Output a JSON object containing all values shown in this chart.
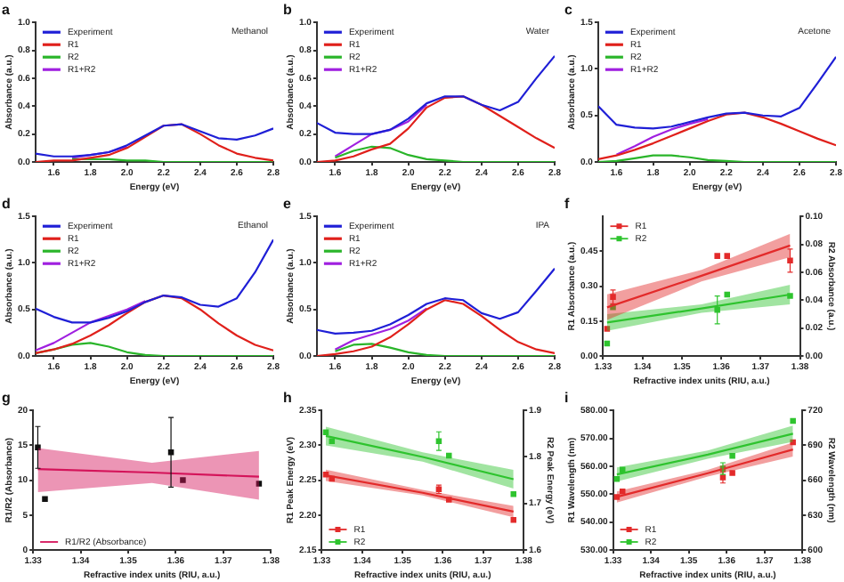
{
  "chart_data": [
    {
      "type": "line",
      "title": "a",
      "xlabel": "Energy (eV)",
      "ylabel": "Absorbance (a.u.)",
      "annotations": [
        "Methanol"
      ],
      "legend": "top left",
      "x": [
        1.5,
        1.6,
        1.7,
        1.8,
        1.9,
        2.0,
        2.1,
        2.2,
        2.3,
        2.4,
        2.5,
        2.6,
        2.7,
        2.8
      ],
      "xlim": [
        1.5,
        2.8
      ],
      "xticks": [
        {
          "value": 1.6,
          "label": "1.6"
        },
        {
          "value": 1.8,
          "label": "1.8"
        },
        {
          "value": 2.0,
          "label": "2.0"
        },
        {
          "value": 2.2,
          "label": "2.2"
        },
        {
          "value": 2.4,
          "label": "2.4"
        },
        {
          "value": 2.6,
          "label": "2.6"
        },
        {
          "value": 2.8,
          "label": "2.8"
        }
      ],
      "ylim": [
        0,
        1
      ],
      "yticks": [
        {
          "value": 0,
          "label": "0.0"
        },
        {
          "value": 0.2,
          "label": "0.2"
        },
        {
          "value": 0.4,
          "label": "0.4"
        },
        {
          "value": 0.6,
          "label": "0.6"
        },
        {
          "value": 0.8,
          "label": "0.8"
        },
        {
          "value": 1,
          "label": "1.0"
        }
      ],
      "series": [
        {
          "name": "Experiment",
          "color": "#1f1fd6",
          "values": [
            0.06,
            0.04,
            0.04,
            0.05,
            0.07,
            0.12,
            0.19,
            0.26,
            0.27,
            0.22,
            0.17,
            0.16,
            0.19,
            0.24
          ]
        },
        {
          "name": "R1",
          "color": "#e0201b",
          "values": [
            0,
            0.01,
            0.01,
            0.03,
            0.05,
            0.1,
            0.18,
            0.26,
            0.27,
            0.2,
            0.12,
            0.06,
            0.03,
            0.01
          ]
        },
        {
          "name": "R2",
          "color": "#2ab52a",
          "values": [
            null,
            null,
            0.02,
            0.02,
            0.02,
            0.01,
            0.01,
            0,
            0,
            0,
            0,
            0,
            0,
            0
          ]
        },
        {
          "name": "R1+R2",
          "color": "#a020e0",
          "values": [
            null,
            null,
            0.03,
            0.05,
            0.07,
            0.11,
            null,
            null,
            null,
            null,
            null,
            null,
            null,
            null
          ]
        }
      ]
    },
    {
      "type": "line",
      "title": "b",
      "xlabel": "Energy (eV)",
      "ylabel": "Absorbance (a.u.)",
      "annotations": [
        "Water"
      ],
      "legend": "top left",
      "x": [
        1.5,
        1.6,
        1.7,
        1.8,
        1.9,
        2.0,
        2.1,
        2.2,
        2.3,
        2.4,
        2.5,
        2.6,
        2.7,
        2.8
      ],
      "xlim": [
        1.5,
        2.8
      ],
      "xticks": [
        {
          "value": 1.6,
          "label": "1.6"
        },
        {
          "value": 1.8,
          "label": "1.8"
        },
        {
          "value": 2.0,
          "label": "2.0"
        },
        {
          "value": 2.2,
          "label": "2.2"
        },
        {
          "value": 2.4,
          "label": "2.4"
        },
        {
          "value": 2.6,
          "label": "2.6"
        },
        {
          "value": 2.8,
          "label": "2.8"
        }
      ],
      "ylim": [
        0,
        1
      ],
      "yticks": [
        {
          "value": 0,
          "label": "0.0"
        },
        {
          "value": 0.2,
          "label": "0.2"
        },
        {
          "value": 0.4,
          "label": "0.4"
        },
        {
          "value": 0.6,
          "label": "0.6"
        },
        {
          "value": 0.8,
          "label": "0.8"
        },
        {
          "value": 1,
          "label": "1.0"
        }
      ],
      "series": [
        {
          "name": "Experiment",
          "color": "#1f1fd6",
          "values": [
            0.28,
            0.21,
            0.2,
            0.2,
            0.23,
            0.31,
            0.42,
            0.47,
            0.47,
            0.41,
            0.37,
            0.43,
            0.6,
            0.76
          ]
        },
        {
          "name": "R1",
          "color": "#e0201b",
          "values": [
            0,
            0.01,
            0.04,
            0.09,
            0.13,
            0.24,
            0.39,
            0.46,
            0.47,
            0.41,
            0.33,
            0.25,
            0.17,
            0.1
          ]
        },
        {
          "name": "R2",
          "color": "#2ab52a",
          "values": [
            null,
            0.03,
            0.08,
            0.11,
            0.1,
            0.05,
            0.02,
            0.01,
            0,
            0,
            0,
            0,
            0,
            0
          ]
        },
        {
          "name": "R1+R2",
          "color": "#a020e0",
          "values": [
            null,
            0.04,
            0.12,
            0.2,
            0.23,
            0.29,
            0.41,
            null,
            null,
            null,
            null,
            null,
            null,
            null
          ]
        }
      ]
    },
    {
      "type": "line",
      "title": "c",
      "xlabel": "Energy (eV)",
      "ylabel": "Absorbance (a.u.)",
      "annotations": [
        "Acetone"
      ],
      "legend": "top left",
      "x": [
        1.5,
        1.6,
        1.7,
        1.8,
        1.9,
        2.0,
        2.1,
        2.2,
        2.3,
        2.4,
        2.5,
        2.6,
        2.7,
        2.8
      ],
      "xlim": [
        1.5,
        2.8
      ],
      "xticks": [
        {
          "value": 1.6,
          "label": "1.6"
        },
        {
          "value": 1.8,
          "label": "1.8"
        },
        {
          "value": 2.0,
          "label": "2.0"
        },
        {
          "value": 2.2,
          "label": "2.2"
        },
        {
          "value": 2.4,
          "label": "2.4"
        },
        {
          "value": 2.6,
          "label": "2.6"
        },
        {
          "value": 2.8,
          "label": "2.8"
        }
      ],
      "ylim": [
        0,
        1.5
      ],
      "yticks": [
        {
          "value": 0,
          "label": "0.0"
        },
        {
          "value": 0.5,
          "label": "0.5"
        },
        {
          "value": 1,
          "label": "1.0"
        },
        {
          "value": 1.5,
          "label": "1.5"
        }
      ],
      "series": [
        {
          "name": "Experiment",
          "color": "#1f1fd6",
          "values": [
            0.6,
            0.4,
            0.37,
            0.36,
            0.38,
            0.43,
            0.48,
            0.52,
            0.53,
            0.5,
            0.49,
            0.58,
            0.85,
            1.13
          ]
        },
        {
          "name": "R1",
          "color": "#e0201b",
          "values": [
            0.03,
            0.07,
            0.13,
            0.2,
            0.28,
            0.36,
            0.44,
            0.51,
            0.53,
            0.48,
            0.41,
            0.33,
            0.25,
            0.18
          ]
        },
        {
          "name": "R2",
          "color": "#2ab52a",
          "values": [
            0,
            0.01,
            0.04,
            0.07,
            0.07,
            0.05,
            0.02,
            0.01,
            0,
            0,
            0,
            0,
            0,
            0
          ]
        },
        {
          "name": "R1+R2",
          "color": "#a020e0",
          "values": [
            null,
            0.08,
            0.17,
            0.27,
            0.35,
            0.41,
            0.46,
            null,
            null,
            null,
            null,
            null,
            null,
            null
          ]
        }
      ]
    },
    {
      "type": "line",
      "title": "d",
      "xlabel": "Energy (eV)",
      "ylabel": "Absorbance (a.u.)",
      "annotations": [
        "Ethanol"
      ],
      "legend": "top left",
      "x": [
        1.5,
        1.6,
        1.7,
        1.8,
        1.9,
        2.0,
        2.1,
        2.2,
        2.3,
        2.4,
        2.5,
        2.6,
        2.7,
        2.8
      ],
      "xlim": [
        1.5,
        2.8
      ],
      "xticks": [
        {
          "value": 1.6,
          "label": "1.6"
        },
        {
          "value": 1.8,
          "label": "1.8"
        },
        {
          "value": 2.0,
          "label": "2.0"
        },
        {
          "value": 2.2,
          "label": "2.2"
        },
        {
          "value": 2.4,
          "label": "2.4"
        },
        {
          "value": 2.6,
          "label": "2.6"
        },
        {
          "value": 2.8,
          "label": "2.8"
        }
      ],
      "ylim": [
        0,
        1.5
      ],
      "yticks": [
        {
          "value": 0,
          "label": "0.0"
        },
        {
          "value": 0.5,
          "label": "0.5"
        },
        {
          "value": 1,
          "label": "1.0"
        },
        {
          "value": 1.5,
          "label": "1.5"
        }
      ],
      "series": [
        {
          "name": "Experiment",
          "color": "#1f1fd6",
          "values": [
            0.51,
            0.42,
            0.36,
            0.36,
            0.41,
            0.48,
            0.58,
            0.65,
            0.63,
            0.55,
            0.53,
            0.62,
            0.9,
            1.25
          ]
        },
        {
          "name": "R1",
          "color": "#e0201b",
          "values": [
            0.03,
            0.07,
            0.13,
            0.22,
            0.33,
            0.46,
            0.58,
            0.65,
            0.62,
            0.5,
            0.35,
            0.22,
            0.12,
            0.06
          ]
        },
        {
          "name": "R2",
          "color": "#2ab52a",
          "values": [
            0.03,
            0.07,
            0.12,
            0.14,
            0.1,
            0.04,
            0.01,
            0,
            0,
            0,
            0,
            0,
            0,
            0
          ]
        },
        {
          "name": "R1+R2",
          "color": "#a020e0",
          "values": [
            0.06,
            0.14,
            0.25,
            0.36,
            0.43,
            0.5,
            0.59,
            null,
            null,
            null,
            null,
            null,
            null,
            null
          ]
        }
      ]
    },
    {
      "type": "line",
      "title": "e",
      "xlabel": "Energy (eV)",
      "ylabel": "Absorbance (a.u.)",
      "annotations": [
        "IPA"
      ],
      "legend": "top left",
      "x": [
        1.5,
        1.6,
        1.7,
        1.8,
        1.9,
        2.0,
        2.1,
        2.2,
        2.3,
        2.4,
        2.5,
        2.6,
        2.7,
        2.8
      ],
      "xlim": [
        1.5,
        2.8
      ],
      "xticks": [
        {
          "value": 1.6,
          "label": "1.6"
        },
        {
          "value": 1.8,
          "label": "1.8"
        },
        {
          "value": 2.0,
          "label": "2.0"
        },
        {
          "value": 2.2,
          "label": "2.2"
        },
        {
          "value": 2.4,
          "label": "2.4"
        },
        {
          "value": 2.6,
          "label": "2.6"
        },
        {
          "value": 2.8,
          "label": "2.8"
        }
      ],
      "ylim": [
        0,
        1.5
      ],
      "yticks": [
        {
          "value": 0,
          "label": "0.0"
        },
        {
          "value": 0.5,
          "label": "0.5"
        },
        {
          "value": 1,
          "label": "1.0"
        },
        {
          "value": 1.5,
          "label": "1.5"
        }
      ],
      "series": [
        {
          "name": "Experiment",
          "color": "#1f1fd6",
          "values": [
            0.28,
            0.24,
            0.25,
            0.27,
            0.34,
            0.44,
            0.56,
            0.62,
            0.6,
            0.46,
            0.4,
            0.47,
            0.7,
            0.94
          ]
        },
        {
          "name": "R1",
          "color": "#e0201b",
          "values": [
            0,
            0.02,
            0.05,
            0.1,
            0.2,
            0.34,
            0.5,
            0.6,
            0.56,
            0.43,
            0.28,
            0.15,
            0.07,
            0.03
          ]
        },
        {
          "name": "R2",
          "color": "#2ab52a",
          "values": [
            null,
            0.05,
            0.12,
            0.13,
            0.09,
            0.04,
            0.01,
            0,
            0,
            0,
            0,
            0,
            0,
            0
          ]
        },
        {
          "name": "R1+R2",
          "color": "#a020e0",
          "values": [
            null,
            0.07,
            0.17,
            0.23,
            0.29,
            0.38,
            0.51,
            null,
            null,
            null,
            null,
            null,
            null,
            null
          ]
        }
      ]
    },
    {
      "type": "scatter",
      "title": "f",
      "xlabel": "Refractive index units (RIU, a.u.)",
      "ylabel": "R1 Absorbance (a.u.)",
      "y2label": "R2 Absorbance (a.u.)",
      "legend": "top left",
      "marker": "square",
      "x": [
        1.331,
        1.3325,
        1.359,
        1.3615,
        1.3775
      ],
      "xlim": [
        1.33,
        1.38
      ],
      "xticks": [
        1.33,
        1.34,
        1.35,
        1.36,
        1.37,
        1.38
      ],
      "ylim": [
        0,
        0.6
      ],
      "yticks": [
        {
          "value": 0,
          "label": "0.00"
        },
        {
          "value": 0.15,
          "label": "0.15"
        },
        {
          "value": 0.3,
          "label": "0.30"
        },
        {
          "value": 0.45,
          "label": "0.45"
        }
      ],
      "y2lim": [
        0,
        0.1
      ],
      "y2ticks": [
        {
          "value": 0,
          "label": "0.00"
        },
        {
          "value": 0.02,
          "label": "0.02"
        },
        {
          "value": 0.04,
          "label": "0.04"
        },
        {
          "value": 0.06,
          "label": "0.06"
        },
        {
          "value": 0.08,
          "label": "0.08"
        },
        {
          "value": 0.1,
          "label": "0.10"
        }
      ],
      "series": [
        {
          "type": "line",
          "marker": "none",
          "color": "#e32b2b",
          "x": [
            1.331,
            1.355,
            1.3775
          ],
          "values": [
            0.209,
            0.345,
            0.475
          ],
          "lower": [
            0.155,
            0.32,
            0.425
          ],
          "upper": [
            0.265,
            0.37,
            0.525
          ]
        },
        {
          "type": "line",
          "marker": "none",
          "color": "#2fc42f",
          "axis": "y2",
          "x": [
            1.331,
            1.355,
            1.3775
          ],
          "values": [
            0.024,
            0.034,
            0.044
          ],
          "lower": [
            0.018,
            0.031,
            0.037
          ],
          "upper": [
            0.03,
            0.037,
            0.051
          ]
        },
        {
          "name": "R1",
          "color": "#e32b2b",
          "values": [
            0.117,
            0.254,
            0.43,
            0.43,
            0.41
          ],
          "errors": [
            null,
            0.03,
            null,
            null,
            0.05
          ]
        },
        {
          "name": "R2",
          "color": "#2fc42f",
          "axis": "y2",
          "values": [
            0.009,
            0.035,
            0.033,
            0.044,
            0.043
          ],
          "errors": [
            null,
            null,
            0.01,
            null,
            null
          ]
        }
      ]
    },
    {
      "type": "scatter",
      "title": "g",
      "xlabel": "Refractive index units (RIU, a.u.)",
      "ylabel": "R1/R2 (Absorbance)",
      "legend": "bottom left",
      "marker": "square",
      "x": [
        1.331,
        1.3325,
        1.359,
        1.3615,
        1.3775
      ],
      "xlim": [
        1.33,
        1.38
      ],
      "xticks": [
        1.33,
        1.34,
        1.35,
        1.36,
        1.37,
        1.38
      ],
      "ylim": [
        0,
        20
      ],
      "yticks": [
        0,
        5,
        10,
        15,
        20
      ],
      "series": [
        {
          "name": "R1/R2 (Absorbance)",
          "type": "line",
          "marker": "none",
          "color": "#d4145a",
          "x": [
            1.331,
            1.355,
            1.3775
          ],
          "values": [
            11.6,
            11.1,
            10.5
          ],
          "lower": [
            8.3,
            9.6,
            7.2
          ],
          "upper": [
            14.6,
            12.5,
            14.2
          ]
        },
        {
          "color": "#111111",
          "values": [
            14.7,
            7.3,
            14,
            10,
            9.5
          ],
          "errors": [
            3,
            null,
            5,
            null,
            null
          ]
        }
      ]
    },
    {
      "type": "scatter",
      "title": "h",
      "xlabel": "Refractive index units (RIU, a.u.)",
      "ylabel": "R1 Peak Energy (eV)",
      "y2label": "R2 Peak Energy (eV)",
      "legend": "bottom left",
      "marker": "square",
      "x": [
        1.331,
        1.3325,
        1.359,
        1.3615,
        1.3775
      ],
      "xlim": [
        1.33,
        1.38
      ],
      "xticks": [
        1.33,
        1.34,
        1.35,
        1.36,
        1.37,
        1.38
      ],
      "ylim": [
        2.15,
        2.35
      ],
      "yticks": [
        {
          "value": 2.15,
          "label": "2.15"
        },
        {
          "value": 2.2,
          "label": "2.20"
        },
        {
          "value": 2.25,
          "label": "2.25"
        },
        {
          "value": 2.3,
          "label": "2.30"
        },
        {
          "value": 2.35,
          "label": "2.35"
        }
      ],
      "y2lim": [
        1.6,
        1.9
      ],
      "y2ticks": [
        1.6,
        1.7,
        1.8,
        1.9
      ],
      "series": [
        {
          "type": "line",
          "marker": "none",
          "color": "#e32b2b",
          "x": [
            1.331,
            1.355,
            1.3775
          ],
          "values": [
            2.257,
            2.232,
            2.205
          ],
          "lower": [
            2.249,
            2.228,
            2.197
          ],
          "upper": [
            2.265,
            2.236,
            2.213
          ]
        },
        {
          "type": "line",
          "marker": "none",
          "color": "#2fc42f",
          "axis": "y2",
          "x": [
            1.331,
            1.355,
            1.3775
          ],
          "values": [
            1.845,
            1.8,
            1.752
          ],
          "lower": [
            1.825,
            1.79,
            1.732
          ],
          "upper": [
            1.865,
            1.81,
            1.772
          ]
        },
        {
          "name": "R1",
          "color": "#e32b2b",
          "values": [
            2.258,
            2.252,
            2.237,
            2.222,
            2.193
          ],
          "errors": [
            null,
            null,
            0.006,
            null,
            null
          ]
        },
        {
          "name": "R2",
          "color": "#2fc42f",
          "axis": "y2",
          "values": [
            1.853,
            1.834,
            1.834,
            1.803,
            1.72
          ],
          "errors": [
            null,
            null,
            0.02,
            null,
            null
          ]
        }
      ]
    },
    {
      "type": "scatter",
      "title": "i",
      "xlabel": "Refractive index units (RIU, a.u.)",
      "ylabel": "R1 Wavelength (nm)",
      "y2label": "R2 Wavelength (nm)",
      "legend": "bottom left",
      "marker": "square",
      "x": [
        1.331,
        1.3325,
        1.359,
        1.3615,
        1.3775
      ],
      "xlim": [
        1.33,
        1.38
      ],
      "xticks": [
        1.33,
        1.34,
        1.35,
        1.36,
        1.37,
        1.38
      ],
      "ylim": [
        530,
        580
      ],
      "yticks": [
        {
          "value": 530,
          "label": "530.00"
        },
        {
          "value": 540,
          "label": "540.00"
        },
        {
          "value": 550,
          "label": "550.00"
        },
        {
          "value": 560,
          "label": "560.00"
        },
        {
          "value": 570,
          "label": "570.00"
        },
        {
          "value": 580,
          "label": "580.00"
        }
      ],
      "y2lim": [
        600,
        720
      ],
      "y2ticks": [
        600,
        630,
        660,
        690,
        720
      ],
      "series": [
        {
          "type": "line",
          "marker": "none",
          "color": "#e32b2b",
          "x": [
            1.331,
            1.355,
            1.3775
          ],
          "values": [
            549,
            557.5,
            566
          ],
          "lower": [
            547,
            556.3,
            563.5
          ],
          "upper": [
            551,
            558.7,
            568.5
          ]
        },
        {
          "type": "line",
          "marker": "none",
          "color": "#2fc42f",
          "axis": "y2",
          "x": [
            1.331,
            1.355,
            1.3775
          ],
          "values": [
            665,
            682,
            700
          ],
          "lower": [
            659,
            678.5,
            693
          ],
          "upper": [
            671,
            685.5,
            707
          ]
        },
        {
          "name": "R1",
          "color": "#e32b2b",
          "values": [
            549,
            551,
            556,
            557.6,
            568.6
          ],
          "errors": [
            null,
            null,
            2,
            null,
            null
          ]
        },
        {
          "name": "R2",
          "color": "#2fc42f",
          "axis": "y2",
          "values": [
            661,
            669,
            670,
            681,
            711
          ],
          "errors": [
            null,
            null,
            5,
            null,
            null
          ]
        }
      ]
    }
  ]
}
